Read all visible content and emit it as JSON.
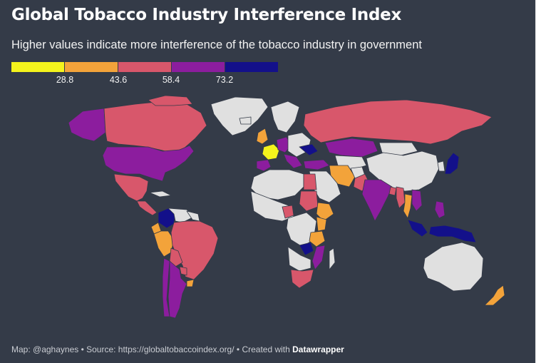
{
  "title": "Global Tobacco Industry Interference Index",
  "subtitle": "Higher values indicate more interference of the tobacco industry in government",
  "legend": {
    "colors": [
      "#f4f31c",
      "#f3a33a",
      "#d8576b",
      "#8c1d9e",
      "#13108a"
    ],
    "ticks": [
      "28.8",
      "43.6",
      "58.4",
      "73.2"
    ]
  },
  "colors": {
    "background": "#343b48",
    "no_data": "#e0e0e0",
    "borders": "#343b48"
  },
  "map": {
    "projection": "Robinson-like world map",
    "countries": [
      {
        "name": "Canada",
        "bin": 3
      },
      {
        "name": "Alaska (United States)",
        "bin": 4
      },
      {
        "name": "United States",
        "bin": 4
      },
      {
        "name": "Mexico",
        "bin": 3
      },
      {
        "name": "Guatemala",
        "bin": 3
      },
      {
        "name": "Colombia",
        "bin": 5
      },
      {
        "name": "Ecuador",
        "bin": 2
      },
      {
        "name": "Peru",
        "bin": 2
      },
      {
        "name": "Brazil",
        "bin": 3
      },
      {
        "name": "Bolivia",
        "bin": 3
      },
      {
        "name": "Paraguay",
        "bin": 3
      },
      {
        "name": "Chile",
        "bin": 4
      },
      {
        "name": "Argentina",
        "bin": 4
      },
      {
        "name": "Uruguay",
        "bin": 2
      },
      {
        "name": "Russia",
        "bin": 3
      },
      {
        "name": "United Kingdom",
        "bin": 2
      },
      {
        "name": "France",
        "bin": 1
      },
      {
        "name": "Spain",
        "bin": 4
      },
      {
        "name": "Germany",
        "bin": 4
      },
      {
        "name": "Kazakhstan",
        "bin": 4
      },
      {
        "name": "Iran",
        "bin": 2
      },
      {
        "name": "Pakistan",
        "bin": 3
      },
      {
        "name": "India",
        "bin": 4
      },
      {
        "name": "Bangladesh",
        "bin": 3
      },
      {
        "name": "Myanmar",
        "bin": 3
      },
      {
        "name": "Thailand",
        "bin": 2
      },
      {
        "name": "Philippines",
        "bin": 4
      },
      {
        "name": "Indonesia",
        "bin": 5
      },
      {
        "name": "Japan",
        "bin": 5
      },
      {
        "name": "Egypt",
        "bin": 3
      },
      {
        "name": "Ethiopia",
        "bin": 2
      },
      {
        "name": "Kenya",
        "bin": 2
      },
      {
        "name": "Tanzania",
        "bin": 2
      },
      {
        "name": "Mozambique",
        "bin": 4
      },
      {
        "name": "Zambia",
        "bin": 5
      },
      {
        "name": "South Africa",
        "bin": 3
      },
      {
        "name": "New Zealand",
        "bin": 2
      }
    ]
  },
  "footer": {
    "prefix": "Map: @aghaynes • Source: https://globaltobaccoindex.org/ • Created with ",
    "brand": "Datawrapper"
  }
}
